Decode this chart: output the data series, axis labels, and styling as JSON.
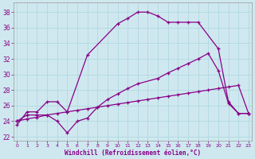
{
  "xlabel": "Windchill (Refroidissement éolien,°C)",
  "bg_color": "#cfe8ef",
  "line_color": "#880088",
  "grid_color": "#b0d8e0",
  "x_ticks": [
    0,
    1,
    2,
    3,
    4,
    5,
    6,
    7,
    8,
    9,
    10,
    11,
    12,
    13,
    14,
    15,
    16,
    17,
    18,
    19,
    20,
    21,
    22,
    23
  ],
  "y_ticks": [
    22,
    24,
    26,
    28,
    30,
    32,
    34,
    36,
    38
  ],
  "xlim": [
    -0.3,
    23.3
  ],
  "ylim": [
    21.5,
    39.2
  ],
  "line1_x": [
    0,
    1,
    2,
    3,
    4,
    5,
    7,
    10,
    11,
    12,
    13,
    14,
    15,
    16,
    17,
    18,
    20,
    21,
    22,
    23
  ],
  "line1_y": [
    23.5,
    25.2,
    25.2,
    26.5,
    26.5,
    25.2,
    32.5,
    36.5,
    37.2,
    38.0,
    38.0,
    37.5,
    36.7,
    36.7,
    36.7,
    36.7,
    33.3,
    26.5,
    25.0,
    25.0
  ],
  "line2_x": [
    0,
    1,
    2,
    3,
    4,
    5,
    6,
    7,
    8,
    9,
    10,
    11,
    12,
    14,
    15,
    16,
    17,
    18,
    19,
    20,
    21,
    22,
    23
  ],
  "line2_y": [
    24.0,
    24.8,
    24.8,
    24.8,
    24.0,
    22.5,
    24.0,
    24.4,
    25.8,
    26.8,
    27.5,
    28.2,
    28.8,
    29.5,
    30.2,
    30.8,
    31.4,
    32.0,
    32.7,
    30.5,
    26.3,
    25.0,
    25.0
  ],
  "line3_x": [
    0,
    1,
    2,
    3,
    4,
    5,
    6,
    7,
    8,
    9,
    10,
    11,
    12,
    13,
    14,
    15,
    16,
    17,
    18,
    19,
    20,
    21,
    22,
    23
  ],
  "line3_y": [
    24.0,
    24.3,
    24.5,
    24.8,
    25.0,
    25.2,
    25.4,
    25.6,
    25.8,
    26.0,
    26.2,
    26.4,
    26.6,
    26.8,
    27.0,
    27.2,
    27.4,
    27.6,
    27.8,
    28.0,
    28.2,
    28.4,
    28.6,
    25.0
  ]
}
